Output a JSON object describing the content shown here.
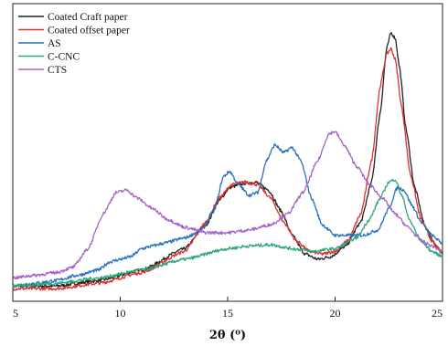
{
  "chart_data": {
    "type": "line",
    "title": "",
    "xlabel": "2θ (⁰)",
    "ylabel": "",
    "xlim": [
      5,
      25
    ],
    "ylim": [
      0,
      1
    ],
    "xticks": [
      5,
      10,
      15,
      20,
      25
    ],
    "xtick_labels": [
      "5",
      "10",
      "15",
      "20",
      "25"
    ],
    "grid": false,
    "legend": "top-left",
    "series": [
      {
        "name": "Coated Craft paper",
        "color": "#222222",
        "points": [
          [
            5,
            0.03
          ],
          [
            7,
            0.03
          ],
          [
            9,
            0.05
          ],
          [
            11,
            0.09
          ],
          [
            13,
            0.17
          ],
          [
            14,
            0.26
          ],
          [
            14.6,
            0.35
          ],
          [
            15.1,
            0.4
          ],
          [
            15.8,
            0.415
          ],
          [
            16.3,
            0.42
          ],
          [
            16.9,
            0.39
          ],
          [
            17.5,
            0.31
          ],
          [
            18,
            0.22
          ],
          [
            18.6,
            0.15
          ],
          [
            19.2,
            0.13
          ],
          [
            19.8,
            0.14
          ],
          [
            20.5,
            0.18
          ],
          [
            21.2,
            0.27
          ],
          [
            21.7,
            0.42
          ],
          [
            22.1,
            0.68
          ],
          [
            22.4,
            0.92
          ],
          [
            22.6,
            0.98
          ],
          [
            22.8,
            0.96
          ],
          [
            23,
            0.85
          ],
          [
            23.3,
            0.62
          ],
          [
            23.7,
            0.4
          ],
          [
            24.2,
            0.25
          ],
          [
            24.7,
            0.18
          ],
          [
            25,
            0.15
          ]
        ]
      },
      {
        "name": "Coated offset paper",
        "color": "#e03030",
        "points": [
          [
            5,
            0.02
          ],
          [
            7,
            0.02
          ],
          [
            9,
            0.04
          ],
          [
            11,
            0.08
          ],
          [
            13,
            0.16
          ],
          [
            14,
            0.27
          ],
          [
            14.6,
            0.36
          ],
          [
            15.2,
            0.41
          ],
          [
            15.8,
            0.42
          ],
          [
            16.4,
            0.41
          ],
          [
            17,
            0.36
          ],
          [
            17.6,
            0.27
          ],
          [
            18.2,
            0.2
          ],
          [
            18.8,
            0.16
          ],
          [
            19.4,
            0.15
          ],
          [
            20,
            0.16
          ],
          [
            20.6,
            0.2
          ],
          [
            21.2,
            0.3
          ],
          [
            21.7,
            0.5
          ],
          [
            22.1,
            0.78
          ],
          [
            22.4,
            0.9
          ],
          [
            22.6,
            0.92
          ],
          [
            22.8,
            0.88
          ],
          [
            23.1,
            0.7
          ],
          [
            23.5,
            0.45
          ],
          [
            24,
            0.28
          ],
          [
            24.5,
            0.2
          ],
          [
            25,
            0.15
          ]
        ]
      },
      {
        "name": "AS",
        "color": "#2a6fbf",
        "points": [
          [
            5,
            0.03
          ],
          [
            6,
            0.04
          ],
          [
            7,
            0.05
          ],
          [
            8,
            0.07
          ],
          [
            9,
            0.09
          ],
          [
            9.5,
            0.12
          ],
          [
            10,
            0.13
          ],
          [
            10.5,
            0.14
          ],
          [
            11,
            0.17
          ],
          [
            11.5,
            0.18
          ],
          [
            12,
            0.19
          ],
          [
            13,
            0.21
          ],
          [
            13.8,
            0.24
          ],
          [
            14.4,
            0.32
          ],
          [
            14.8,
            0.44
          ],
          [
            15.1,
            0.46
          ],
          [
            15.5,
            0.41
          ],
          [
            16,
            0.37
          ],
          [
            16.4,
            0.38
          ],
          [
            16.8,
            0.5
          ],
          [
            17.2,
            0.56
          ],
          [
            17.6,
            0.53
          ],
          [
            18,
            0.55
          ],
          [
            18.4,
            0.5
          ],
          [
            18.9,
            0.36
          ],
          [
            19.4,
            0.26
          ],
          [
            20,
            0.22
          ],
          [
            20.7,
            0.22
          ],
          [
            21.3,
            0.22
          ],
          [
            22,
            0.24
          ],
          [
            22.5,
            0.32
          ],
          [
            22.9,
            0.4
          ],
          [
            23.2,
            0.39
          ],
          [
            23.6,
            0.33
          ],
          [
            24,
            0.27
          ],
          [
            24.5,
            0.22
          ],
          [
            25,
            0.19
          ]
        ]
      },
      {
        "name": "C-CNC",
        "color": "#2ea77a",
        "points": [
          [
            5,
            0.03
          ],
          [
            7,
            0.04
          ],
          [
            9,
            0.06
          ],
          [
            11,
            0.09
          ],
          [
            13,
            0.13
          ],
          [
            15,
            0.17
          ],
          [
            16,
            0.18
          ],
          [
            17,
            0.185
          ],
          [
            18,
            0.17
          ],
          [
            19,
            0.16
          ],
          [
            20,
            0.17
          ],
          [
            21,
            0.21
          ],
          [
            21.6,
            0.28
          ],
          [
            22.1,
            0.36
          ],
          [
            22.5,
            0.42
          ],
          [
            22.8,
            0.43
          ],
          [
            23.1,
            0.37
          ],
          [
            23.5,
            0.27
          ],
          [
            24,
            0.2
          ],
          [
            24.5,
            0.16
          ],
          [
            25,
            0.14
          ]
        ]
      },
      {
        "name": "CTS",
        "color": "#a463c8",
        "points": [
          [
            5,
            0.06
          ],
          [
            6,
            0.07
          ],
          [
            7,
            0.08
          ],
          [
            7.8,
            0.1
          ],
          [
            8.5,
            0.17
          ],
          [
            9.2,
            0.3
          ],
          [
            9.8,
            0.38
          ],
          [
            10.3,
            0.39
          ],
          [
            10.8,
            0.36
          ],
          [
            11.5,
            0.32
          ],
          [
            12.2,
            0.28
          ],
          [
            13,
            0.25
          ],
          [
            14,
            0.23
          ],
          [
            15,
            0.23
          ],
          [
            16,
            0.24
          ],
          [
            17,
            0.26
          ],
          [
            17.8,
            0.3
          ],
          [
            18.5,
            0.38
          ],
          [
            19.2,
            0.5
          ],
          [
            19.7,
            0.6
          ],
          [
            20,
            0.61
          ],
          [
            20.4,
            0.56
          ],
          [
            21,
            0.48
          ],
          [
            21.6,
            0.41
          ],
          [
            22.2,
            0.36
          ],
          [
            22.8,
            0.3
          ],
          [
            23.4,
            0.25
          ],
          [
            24,
            0.2
          ],
          [
            24.5,
            0.18
          ],
          [
            25,
            0.16
          ]
        ]
      }
    ]
  }
}
